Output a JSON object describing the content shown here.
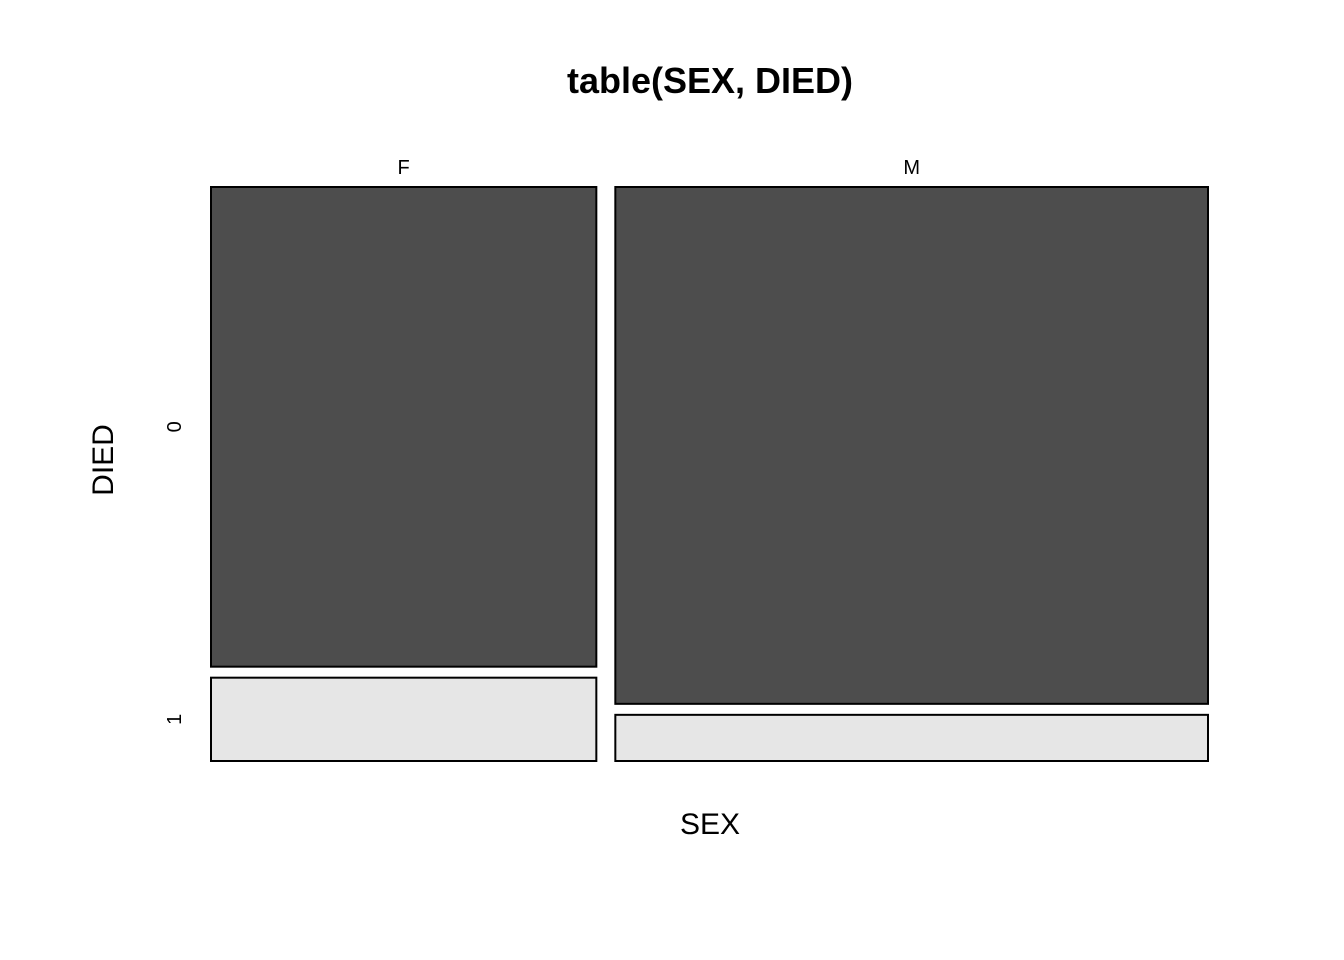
{
  "chart_data": {
    "type": "mosaic",
    "title": "table(SEX, DIED)",
    "xlabel": "SEX",
    "ylabel": "DIED",
    "x_categories": [
      "F",
      "M"
    ],
    "y_categories": [
      "0",
      "1"
    ],
    "x_proportions": [
      0.394,
      0.606
    ],
    "cells": [
      {
        "x": "F",
        "y": "0",
        "proportion": 0.852
      },
      {
        "x": "F",
        "y": "1",
        "proportion": 0.148
      },
      {
        "x": "M",
        "y": "0",
        "proportion": 0.918
      },
      {
        "x": "M",
        "y": "1",
        "proportion": 0.082
      }
    ],
    "colors": {
      "0": "#4d4d4d",
      "1": "#e6e6e6"
    }
  }
}
